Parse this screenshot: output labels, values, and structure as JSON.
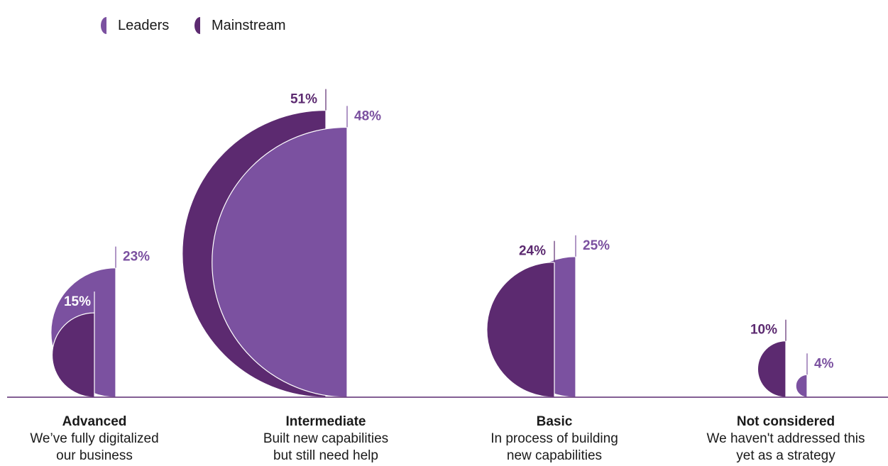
{
  "colors": {
    "leaders": "#5c2a70",
    "mainstream": "#7b51a0",
    "axis": "#5c2a70",
    "text": "#1a1a1a",
    "white": "#ffffff"
  },
  "chart_data": {
    "type": "bar",
    "title": "",
    "legend": {
      "position": "top-left",
      "entries": [
        "Leaders",
        "Mainstream"
      ]
    },
    "categories": [
      {
        "title": "Advanced",
        "description": [
          "We’ve fully digitalized",
          "our business"
        ]
      },
      {
        "title": "Intermediate",
        "description": [
          "Built new capabilities",
          "but still need help"
        ]
      },
      {
        "title": "Basic",
        "description": [
          "In process of building",
          "new capabilities"
        ]
      },
      {
        "title": "Not considered",
        "description": [
          "We haven't addressed this",
          "yet as a strategy"
        ]
      }
    ],
    "series": [
      {
        "name": "Leaders",
        "values": [
          15,
          51,
          24,
          10
        ],
        "labels": [
          "15%",
          "51%",
          "24%",
          "10%"
        ]
      },
      {
        "name": "Mainstream",
        "values": [
          23,
          48,
          25,
          4
        ],
        "labels": [
          "23%",
          "48%",
          "25%",
          "4%"
        ]
      }
    ],
    "unit": "%"
  }
}
